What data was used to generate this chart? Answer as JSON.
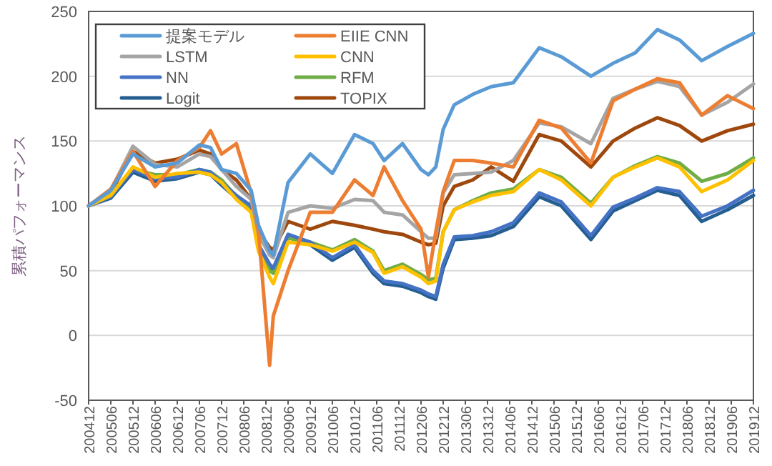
{
  "chart_data": {
    "type": "line",
    "ylabel": "累積パフォーマンス",
    "legend": "top left",
    "grid": "y",
    "marker": "none",
    "line_style": "solid",
    "x": [
      "2004-12",
      "2005-06",
      "2005-12",
      "2006-06",
      "2006-12",
      "2007-06",
      "2007-09",
      "2007-12",
      "2008-04",
      "2008-08",
      "2008-10",
      "2009-01",
      "2009-02",
      "2009-06",
      "2009-12",
      "2010-06",
      "2010-12",
      "2011-05",
      "2011-08",
      "2012-01",
      "2012-06",
      "2012-08",
      "2012-10",
      "2012-12",
      "2013-03",
      "2013-08",
      "2014-01",
      "2014-07",
      "2015-02",
      "2015-08",
      "2016-04",
      "2016-10",
      "2017-04",
      "2017-10",
      "2018-04",
      "2018-10",
      "2019-05",
      "2019-12"
    ],
    "xlim": [
      "2004-12",
      "2019-12"
    ],
    "xticks": [
      {
        "value": "2004-12",
        "label": "200412"
      },
      {
        "value": "2005-06",
        "label": "200506"
      },
      {
        "value": "2005-12",
        "label": "200512"
      },
      {
        "value": "2006-06",
        "label": "200606"
      },
      {
        "value": "2006-12",
        "label": "200612"
      },
      {
        "value": "2007-06",
        "label": "200706"
      },
      {
        "value": "2007-12",
        "label": "200712"
      },
      {
        "value": "2008-06",
        "label": "200806"
      },
      {
        "value": "2008-12",
        "label": "200812"
      },
      {
        "value": "2009-06",
        "label": "200906"
      },
      {
        "value": "2009-12",
        "label": "200912"
      },
      {
        "value": "2010-06",
        "label": "201006"
      },
      {
        "value": "2010-12",
        "label": "201012"
      },
      {
        "value": "2011-06",
        "label": "201106"
      },
      {
        "value": "2011-12",
        "label": "201112"
      },
      {
        "value": "2012-06",
        "label": "201206"
      },
      {
        "value": "2012-12",
        "label": "201212"
      },
      {
        "value": "2013-06",
        "label": "201306"
      },
      {
        "value": "2013-12",
        "label": "201312"
      },
      {
        "value": "2014-06",
        "label": "201406"
      },
      {
        "value": "2014-12",
        "label": "201412"
      },
      {
        "value": "2015-06",
        "label": "201506"
      },
      {
        "value": "2015-12",
        "label": "201512"
      },
      {
        "value": "2016-06",
        "label": "201606"
      },
      {
        "value": "2016-12",
        "label": "201612"
      },
      {
        "value": "2017-06",
        "label": "201706"
      },
      {
        "value": "2017-12",
        "label": "201712"
      },
      {
        "value": "2018-06",
        "label": "201806"
      },
      {
        "value": "2018-12",
        "label": "201812"
      },
      {
        "value": "2019-06",
        "label": "201906"
      },
      {
        "value": "2019-12",
        "label": "201912"
      }
    ],
    "ylim": [
      -50,
      250
    ],
    "yticks": [
      -50,
      0,
      50,
      100,
      150,
      200,
      250
    ],
    "series": [
      {
        "name": "提案モデル",
        "color": "#5b9bd5",
        "values": [
          100,
          112,
          140,
          130,
          133,
          147,
          145,
          128,
          125,
          112,
          85,
          65,
          62,
          118,
          140,
          125,
          155,
          148,
          135,
          148,
          128,
          124,
          130,
          159,
          178,
          186,
          192,
          195,
          222,
          215,
          200,
          210,
          218,
          236,
          228,
          212,
          223,
          233
        ]
      },
      {
        "name": "EIIE CNN",
        "color": "#ed7d31",
        "values": [
          100,
          113,
          142,
          115,
          135,
          145,
          158,
          140,
          148,
          110,
          80,
          -23,
          15,
          50,
          95,
          95,
          120,
          108,
          130,
          104,
          82,
          45,
          80,
          111,
          135,
          135,
          133,
          130,
          166,
          160,
          133,
          181,
          190,
          198,
          195,
          170,
          185,
          175
        ]
      },
      {
        "name": "LSTM",
        "color": "#a5a5a5",
        "values": [
          100,
          112,
          146,
          132,
          130,
          140,
          138,
          128,
          115,
          105,
          78,
          62,
          60,
          95,
          100,
          98,
          105,
          104,
          95,
          93,
          80,
          75,
          75,
          110,
          124,
          125,
          126,
          135,
          164,
          161,
          148,
          183,
          190,
          196,
          192,
          170,
          180,
          194
        ]
      },
      {
        "name": "CNN",
        "color": "#ffc000",
        "values": [
          100,
          108,
          130,
          122,
          125,
          126,
          124,
          118,
          105,
          95,
          65,
          45,
          40,
          72,
          70,
          65,
          72,
          64,
          48,
          53,
          45,
          40,
          42,
          80,
          97,
          103,
          108,
          111,
          128,
          120,
          100,
          122,
          130,
          137,
          130,
          111,
          120,
          135
        ]
      },
      {
        "name": "NN",
        "color": "#4472c4",
        "values": [
          100,
          107,
          128,
          121,
          122,
          128,
          126,
          118,
          108,
          100,
          70,
          55,
          52,
          78,
          72,
          60,
          70,
          50,
          42,
          40,
          35,
          32,
          30,
          55,
          76,
          77,
          80,
          87,
          110,
          103,
          77,
          99,
          106,
          114,
          111,
          92,
          100,
          112
        ]
      },
      {
        "name": "RFM",
        "color": "#70ad47",
        "values": [
          100,
          109,
          128,
          124,
          124,
          128,
          126,
          120,
          107,
          98,
          68,
          50,
          48,
          75,
          72,
          66,
          74,
          65,
          50,
          55,
          47,
          43,
          44,
          80,
          97,
          104,
          110,
          113,
          128,
          122,
          102,
          122,
          131,
          138,
          133,
          119,
          125,
          137
        ]
      },
      {
        "name": "Logit",
        "color": "#255e91",
        "values": [
          100,
          106,
          126,
          119,
          121,
          126,
          124,
          116,
          106,
          98,
          68,
          52,
          50,
          76,
          70,
          58,
          68,
          48,
          40,
          38,
          33,
          30,
          28,
          52,
          74,
          75,
          77,
          84,
          107,
          100,
          74,
          96,
          104,
          112,
          108,
          88,
          97,
          108
        ]
      },
      {
        "name": "TOPIX",
        "color": "#9e480e",
        "values": [
          100,
          110,
          142,
          133,
          136,
          143,
          140,
          128,
          120,
          105,
          80,
          68,
          66,
          88,
          82,
          88,
          85,
          82,
          80,
          78,
          72,
          70,
          71,
          100,
          115,
          120,
          130,
          119,
          155,
          150,
          130,
          150,
          160,
          168,
          162,
          150,
          158,
          163
        ]
      }
    ]
  }
}
